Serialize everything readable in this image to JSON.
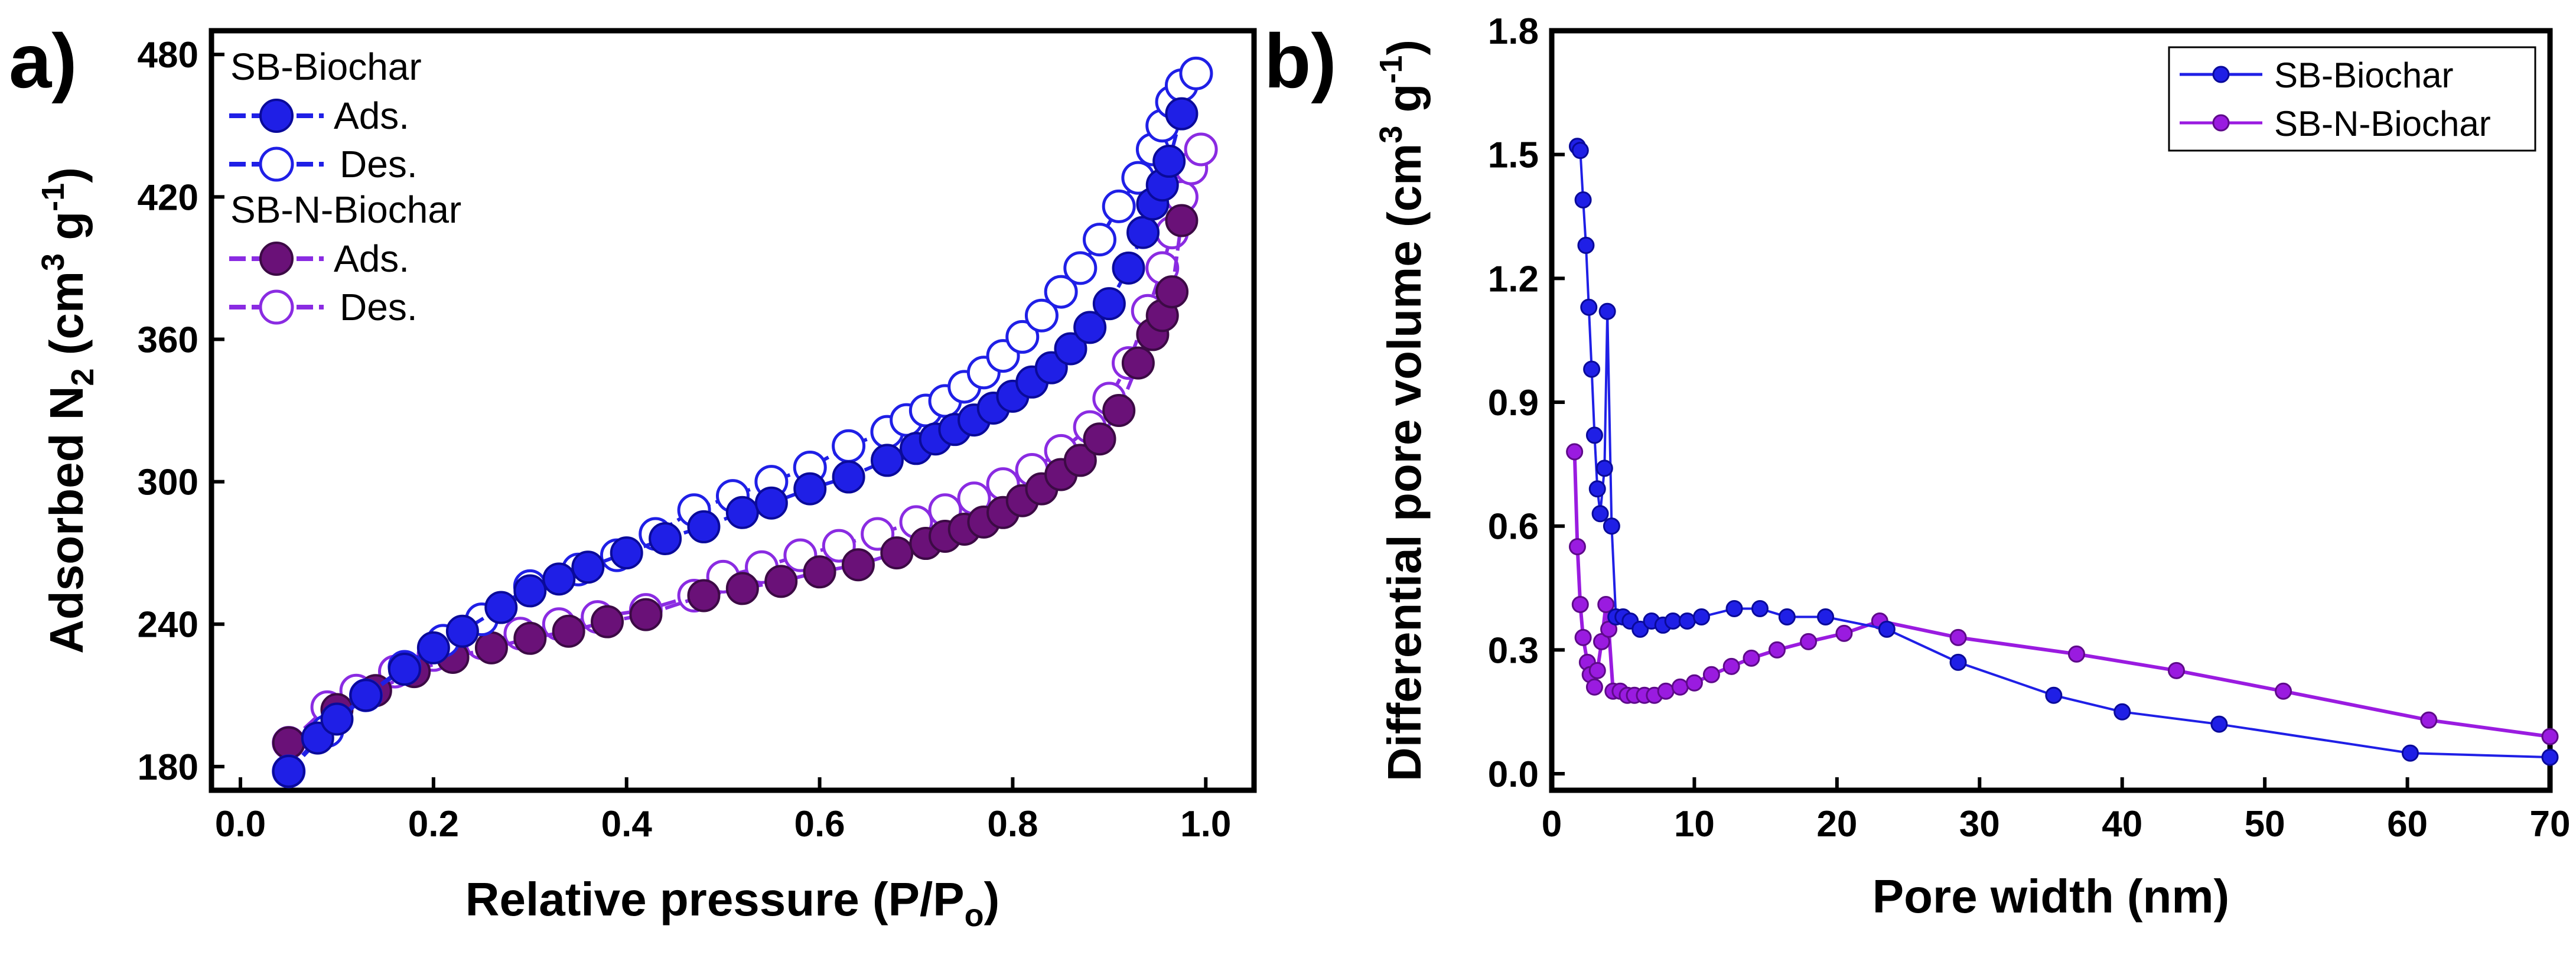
{
  "figure": {
    "panel_a_label": "a)",
    "panel_b_label": "b)"
  },
  "colors": {
    "sb_biochar": "#1f1fe6",
    "sb_biochar_dark": "#0a0a9a",
    "sb_n_biochar_ads": "#6a1178",
    "sb_n_biochar_ads_dark": "#3c0a45",
    "sb_n_biochar_des": "#8a2be2",
    "sb_n_biochar_b": "#9a1be0"
  },
  "chart_data": [
    {
      "type": "scatter",
      "panel": "a)",
      "title": "",
      "xlabel_prefix": "Relative pressure (P/P",
      "xlabel_sub": "o",
      "xlabel_suffix": ")",
      "ylabel_prefix": "Adsorbed N",
      "ylabel_sub": "2",
      "ylabel_mid": " (cm",
      "ylabel_sup1": "3",
      "ylabel_mid2": " g",
      "ylabel_sup2": "-1",
      "ylabel_suffix": ")",
      "xlim": [
        -0.03,
        1.05
      ],
      "ylim": [
        170,
        490
      ],
      "xticks": [
        "0.0",
        "0.2",
        "0.4",
        "0.6",
        "0.8",
        "1.0"
      ],
      "xtick_values": [
        0.0,
        0.2,
        0.4,
        0.6,
        0.8,
        1.0
      ],
      "yticks": [
        "180",
        "240",
        "300",
        "360",
        "420",
        "480"
      ],
      "ytick_values": [
        180,
        240,
        300,
        360,
        420,
        480
      ],
      "legend": {
        "group1_title": "SB-Biochar",
        "group1_ads": "Ads.",
        "group1_des": "Des.",
        "group2_title": "SB-N-Biochar",
        "group2_ads": "Ads.",
        "group2_des": "Des."
      },
      "series": [
        {
          "name": "SB-Biochar Ads.",
          "style": "filled",
          "color_key": "sb_biochar",
          "points": [
            [
              0.05,
              178
            ],
            [
              0.08,
              192
            ],
            [
              0.1,
              200
            ],
            [
              0.13,
              210
            ],
            [
              0.17,
              221
            ],
            [
              0.2,
              230
            ],
            [
              0.23,
              237
            ],
            [
              0.27,
              247
            ],
            [
              0.3,
              254
            ],
            [
              0.33,
              259
            ],
            [
              0.36,
              264
            ],
            [
              0.4,
              270
            ],
            [
              0.44,
              276
            ],
            [
              0.48,
              281
            ],
            [
              0.52,
              287
            ],
            [
              0.55,
              291
            ],
            [
              0.59,
              297
            ],
            [
              0.63,
              302
            ],
            [
              0.67,
              309
            ],
            [
              0.7,
              314
            ],
            [
              0.72,
              318
            ],
            [
              0.74,
              322
            ],
            [
              0.76,
              326
            ],
            [
              0.78,
              331
            ],
            [
              0.8,
              336
            ],
            [
              0.82,
              342
            ],
            [
              0.84,
              348
            ],
            [
              0.86,
              356
            ],
            [
              0.88,
              365
            ],
            [
              0.9,
              375
            ],
            [
              0.92,
              390
            ],
            [
              0.935,
              405
            ],
            [
              0.945,
              417
            ],
            [
              0.955,
              425
            ],
            [
              0.962,
              435
            ],
            [
              0.975,
              455
            ]
          ]
        },
        {
          "name": "SB-Biochar Des.",
          "style": "open",
          "color_key": "sb_biochar",
          "points": [
            [
              0.05,
              178
            ],
            [
              0.09,
              195
            ],
            [
              0.13,
              210
            ],
            [
              0.17,
              222
            ],
            [
              0.21,
              233
            ],
            [
              0.25,
              242
            ],
            [
              0.3,
              256
            ],
            [
              0.35,
              263
            ],
            [
              0.39,
              269
            ],
            [
              0.43,
              278
            ],
            [
              0.47,
              288
            ],
            [
              0.51,
              294
            ],
            [
              0.55,
              300
            ],
            [
              0.59,
              306
            ],
            [
              0.63,
              315
            ],
            [
              0.67,
              321
            ],
            [
              0.69,
              326
            ],
            [
              0.71,
              330
            ],
            [
              0.73,
              334
            ],
            [
              0.75,
              340
            ],
            [
              0.77,
              346
            ],
            [
              0.79,
              353
            ],
            [
              0.81,
              361
            ],
            [
              0.83,
              370
            ],
            [
              0.85,
              380
            ],
            [
              0.87,
              390
            ],
            [
              0.89,
              402
            ],
            [
              0.91,
              416
            ],
            [
              0.93,
              428
            ],
            [
              0.945,
              440
            ],
            [
              0.955,
              450
            ],
            [
              0.965,
              460
            ],
            [
              0.975,
              467
            ],
            [
              0.99,
              472
            ]
          ]
        },
        {
          "name": "SB-N-Biochar Ads.",
          "style": "filled",
          "color_key": "sb_n_biochar_ads",
          "points": [
            [
              0.05,
              190
            ],
            [
              0.1,
              204
            ],
            [
              0.14,
              212
            ],
            [
              0.18,
              220
            ],
            [
              0.22,
              226
            ],
            [
              0.26,
              230
            ],
            [
              0.3,
              234
            ],
            [
              0.34,
              237
            ],
            [
              0.38,
              241
            ],
            [
              0.42,
              244
            ],
            [
              0.48,
              252
            ],
            [
              0.52,
              255
            ],
            [
              0.56,
              258
            ],
            [
              0.6,
              262
            ],
            [
              0.64,
              265
            ],
            [
              0.68,
              270
            ],
            [
              0.71,
              274
            ],
            [
              0.73,
              277
            ],
            [
              0.75,
              280
            ],
            [
              0.77,
              283
            ],
            [
              0.79,
              287
            ],
            [
              0.81,
              292
            ],
            [
              0.83,
              297
            ],
            [
              0.85,
              303
            ],
            [
              0.87,
              309
            ],
            [
              0.89,
              318
            ],
            [
              0.91,
              330
            ],
            [
              0.93,
              350
            ],
            [
              0.945,
              362
            ],
            [
              0.955,
              370
            ],
            [
              0.965,
              380
            ],
            [
              0.975,
              410
            ]
          ]
        },
        {
          "name": "SB-N-Biochar Des.",
          "style": "open",
          "color_key": "sb_n_biochar_des",
          "points": [
            [
              0.05,
              190
            ],
            [
              0.09,
              205
            ],
            [
              0.12,
              212
            ],
            [
              0.16,
              220
            ],
            [
              0.2,
              227
            ],
            [
              0.25,
              232
            ],
            [
              0.29,
              236
            ],
            [
              0.33,
              240
            ],
            [
              0.37,
              243
            ],
            [
              0.42,
              246
            ],
            [
              0.47,
              252
            ],
            [
              0.5,
              260
            ],
            [
              0.54,
              264
            ],
            [
              0.58,
              269
            ],
            [
              0.62,
              273
            ],
            [
              0.66,
              278
            ],
            [
              0.7,
              283
            ],
            [
              0.73,
              288
            ],
            [
              0.76,
              293
            ],
            [
              0.79,
              299
            ],
            [
              0.82,
              305
            ],
            [
              0.85,
              313
            ],
            [
              0.88,
              323
            ],
            [
              0.9,
              335
            ],
            [
              0.92,
              350
            ],
            [
              0.94,
              372
            ],
            [
              0.955,
              390
            ],
            [
              0.965,
              405
            ],
            [
              0.975,
              420
            ],
            [
              0.985,
              432
            ],
            [
              0.995,
              440
            ]
          ]
        }
      ]
    },
    {
      "type": "line",
      "panel": "b)",
      "title": "",
      "xlabel": "Pore width (nm)",
      "ylabel_prefix": "Differential pore volume (cm",
      "ylabel_sup1": "3",
      "ylabel_mid": " g",
      "ylabel_sup2": "-1",
      "ylabel_suffix": ")",
      "xlim": [
        0,
        70
      ],
      "ylim": [
        -0.04,
        1.8
      ],
      "xticks": [
        "0",
        "10",
        "20",
        "30",
        "40",
        "50",
        "60",
        "70"
      ],
      "xtick_values": [
        0,
        10,
        20,
        30,
        40,
        50,
        60,
        70
      ],
      "yticks": [
        "0.0",
        "0.3",
        "0.6",
        "0.9",
        "1.2",
        "1.5",
        "1.8"
      ],
      "ytick_values": [
        0.0,
        0.3,
        0.6,
        0.9,
        1.2,
        1.5,
        1.8
      ],
      "legend": [
        "SB-Biochar",
        "SB-N-Biochar"
      ],
      "series": [
        {
          "name": "SB-Biochar",
          "color_key": "sb_biochar",
          "points": [
            [
              1.8,
              1.52
            ],
            [
              2.0,
              1.51
            ],
            [
              2.2,
              1.39
            ],
            [
              2.4,
              1.28
            ],
            [
              2.6,
              1.13
            ],
            [
              2.8,
              0.98
            ],
            [
              3.0,
              0.82
            ],
            [
              3.2,
              0.69
            ],
            [
              3.4,
              0.63
            ],
            [
              3.7,
              0.74
            ],
            [
              3.9,
              1.12
            ],
            [
              4.2,
              0.6
            ],
            [
              4.5,
              0.38
            ],
            [
              5.0,
              0.38
            ],
            [
              5.5,
              0.37
            ],
            [
              6.2,
              0.35
            ],
            [
              7.0,
              0.37
            ],
            [
              7.8,
              0.36
            ],
            [
              8.5,
              0.37
            ],
            [
              9.5,
              0.37
            ],
            [
              10.5,
              0.38
            ],
            [
              12.8,
              0.4
            ],
            [
              14.6,
              0.4
            ],
            [
              16.5,
              0.38
            ],
            [
              19.2,
              0.38
            ],
            [
              23.5,
              0.35
            ],
            [
              28.5,
              0.27
            ],
            [
              35.2,
              0.19
            ],
            [
              40.0,
              0.15
            ],
            [
              46.8,
              0.12
            ],
            [
              60.2,
              0.05
            ],
            [
              70.0,
              0.04
            ]
          ]
        },
        {
          "name": "SB-N-Biochar",
          "color_key": "sb_n_biochar_b",
          "points": [
            [
              1.6,
              0.78
            ],
            [
              1.8,
              0.55
            ],
            [
              2.0,
              0.41
            ],
            [
              2.2,
              0.33
            ],
            [
              2.5,
              0.27
            ],
            [
              2.7,
              0.24
            ],
            [
              3.0,
              0.21
            ],
            [
              3.2,
              0.25
            ],
            [
              3.5,
              0.32
            ],
            [
              3.8,
              0.41
            ],
            [
              4.0,
              0.35
            ],
            [
              4.3,
              0.2
            ],
            [
              4.8,
              0.2
            ],
            [
              5.3,
              0.19
            ],
            [
              5.8,
              0.19
            ],
            [
              6.5,
              0.19
            ],
            [
              7.2,
              0.19
            ],
            [
              8.0,
              0.2
            ],
            [
              9.0,
              0.21
            ],
            [
              10.0,
              0.22
            ],
            [
              11.2,
              0.24
            ],
            [
              12.6,
              0.26
            ],
            [
              14.0,
              0.28
            ],
            [
              15.8,
              0.3
            ],
            [
              18.0,
              0.32
            ],
            [
              20.5,
              0.34
            ],
            [
              23.0,
              0.37
            ],
            [
              28.5,
              0.33
            ],
            [
              36.8,
              0.29
            ],
            [
              43.8,
              0.25
            ],
            [
              51.3,
              0.2
            ],
            [
              61.5,
              0.13
            ],
            [
              70.0,
              0.09
            ]
          ]
        }
      ]
    }
  ]
}
